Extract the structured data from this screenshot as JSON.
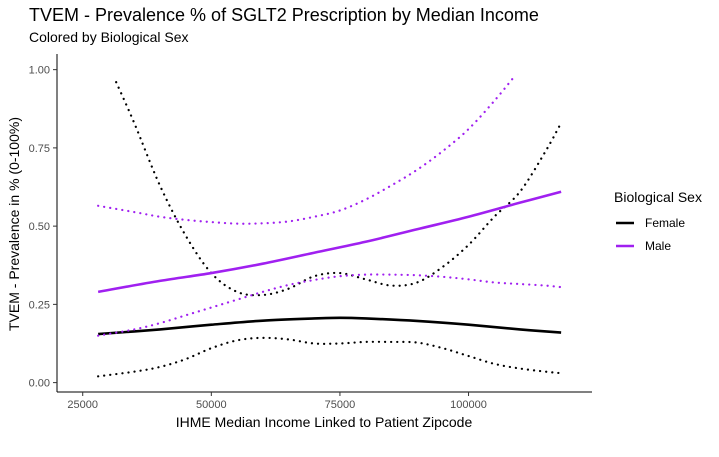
{
  "chart_data": {
    "type": "line",
    "title": "TVEM - Prevalence % of SGLT2 Prescription by Median Income",
    "subtitle": "Colored by Biological Sex",
    "xlabel": "IHME Median Income Linked to Patient Zipcode",
    "ylabel": "TVEM - Prevalence in % (0-100%)",
    "xlim": [
      20000,
      124000
    ],
    "ylim": [
      -0.03,
      1.05
    ],
    "x_ticks": [
      25000,
      50000,
      75000,
      100000
    ],
    "x_tick_labels": [
      "25000",
      "50000",
      "75000",
      "100000"
    ],
    "y_ticks": [
      0,
      0.25,
      0.5,
      0.75,
      1.0
    ],
    "y_tick_labels": [
      "0.00",
      "0.25",
      "0.50",
      "0.75",
      "1.00"
    ],
    "grid": false,
    "legend": {
      "title": "Biological Sex",
      "position": "right",
      "entries": [
        {
          "label": "Female",
          "color": "#000000"
        },
        {
          "label": "Male",
          "color": "#a020f0"
        }
      ]
    },
    "series": [
      {
        "name": "Female",
        "color": "#000000",
        "estimate": {
          "x": [
            28000,
            40000,
            50000,
            60000,
            70000,
            75000,
            80000,
            90000,
            100000,
            110000,
            118000
          ],
          "y": [
            0.155,
            0.17,
            0.185,
            0.198,
            0.205,
            0.207,
            0.205,
            0.197,
            0.185,
            0.17,
            0.16
          ]
        },
        "upper": {
          "x": [
            31500,
            35000,
            40000,
            45000,
            50000,
            55000,
            60000,
            65000,
            70000,
            75000,
            80000,
            85000,
            90000,
            95000,
            100000,
            105000,
            110000,
            115000,
            118000
          ],
          "y": [
            0.96,
            0.83,
            0.63,
            0.47,
            0.35,
            0.29,
            0.28,
            0.3,
            0.34,
            0.35,
            0.33,
            0.31,
            0.32,
            0.37,
            0.44,
            0.53,
            0.61,
            0.74,
            0.83
          ]
        },
        "lower": {
          "x": [
            28000,
            35000,
            40000,
            45000,
            50000,
            55000,
            60000,
            65000,
            70000,
            75000,
            80000,
            85000,
            90000,
            95000,
            100000,
            105000,
            110000,
            115000,
            118000
          ],
          "y": [
            0.02,
            0.035,
            0.05,
            0.075,
            0.11,
            0.135,
            0.143,
            0.138,
            0.125,
            0.125,
            0.13,
            0.13,
            0.128,
            0.11,
            0.085,
            0.06,
            0.045,
            0.035,
            0.03
          ]
        }
      },
      {
        "name": "Male",
        "color": "#a020f0",
        "estimate": {
          "x": [
            28000,
            40000,
            50000,
            60000,
            70000,
            80000,
            90000,
            100000,
            110000,
            118000
          ],
          "y": [
            0.29,
            0.325,
            0.35,
            0.38,
            0.415,
            0.45,
            0.49,
            0.53,
            0.575,
            0.61
          ]
        },
        "upper": {
          "x": [
            28000,
            35000,
            40000,
            45000,
            50000,
            55000,
            60000,
            65000,
            70000,
            75000,
            80000,
            85000,
            90000,
            95000,
            100000,
            105000,
            109000
          ],
          "y": [
            0.565,
            0.545,
            0.53,
            0.52,
            0.513,
            0.508,
            0.509,
            0.515,
            0.53,
            0.55,
            0.585,
            0.63,
            0.68,
            0.74,
            0.81,
            0.9,
            0.98
          ]
        },
        "lower": {
          "x": [
            28000,
            35000,
            40000,
            45000,
            50000,
            55000,
            60000,
            65000,
            70000,
            75000,
            80000,
            85000,
            90000,
            95000,
            100000,
            105000,
            110000,
            115000,
            118000
          ],
          "y": [
            0.15,
            0.17,
            0.19,
            0.215,
            0.24,
            0.265,
            0.29,
            0.312,
            0.328,
            0.34,
            0.345,
            0.345,
            0.343,
            0.338,
            0.33,
            0.32,
            0.315,
            0.31,
            0.305
          ]
        }
      }
    ]
  }
}
